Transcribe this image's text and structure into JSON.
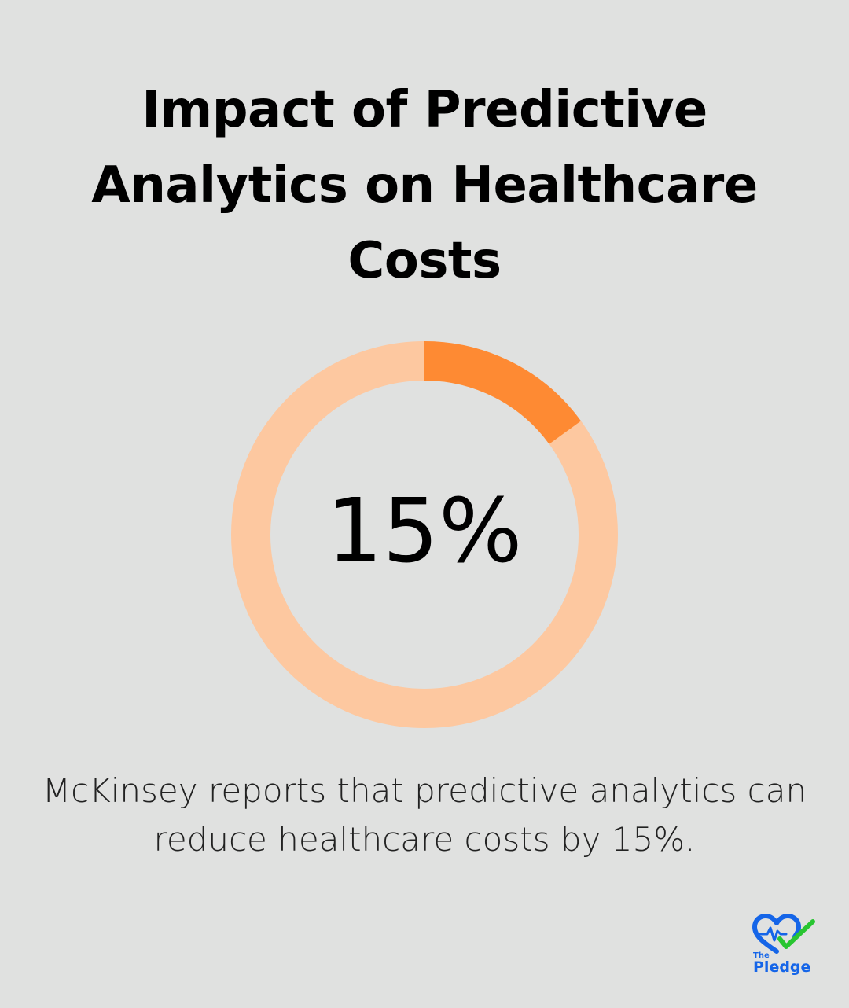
{
  "title": "Impact of Predictive Analytics on Healthcare Costs",
  "caption": "McKinsey reports that predictive analytics can reduce healthcare costs by 15%.",
  "colors": {
    "background": "#e0e1e0",
    "highlight": "#fe8a33",
    "track": "#fdc8a0",
    "text": "#000000",
    "logo_blue": "#1565e8",
    "logo_green": "#28c531"
  },
  "chart_data": {
    "type": "pie",
    "variant": "donut",
    "value_percent": 15,
    "center_label": "15%",
    "slices": [
      {
        "value": 15
      },
      {
        "value": 85
      }
    ]
  },
  "logo": {
    "icon": "heart-checkmark-icon",
    "small_text": "The",
    "text": "Pledge"
  }
}
